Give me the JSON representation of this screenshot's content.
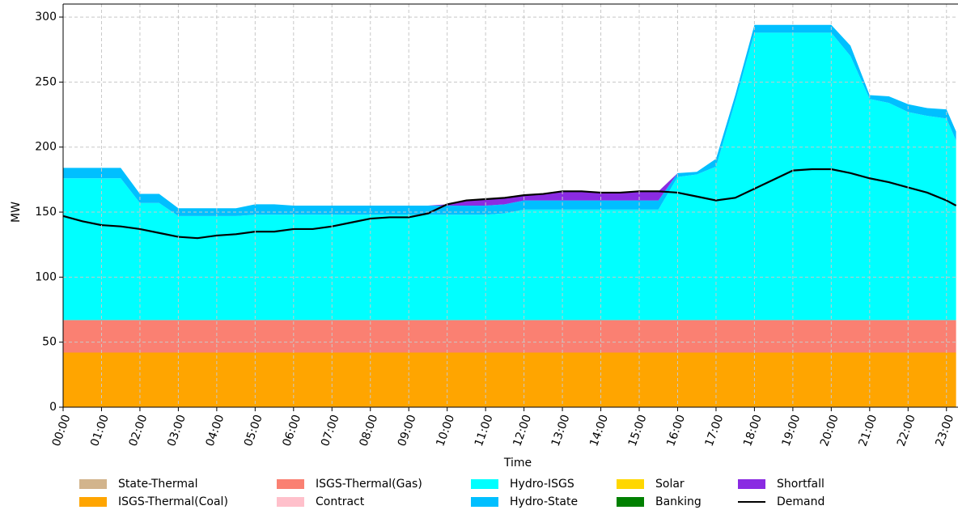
{
  "chart_data": {
    "type": "stacked_area",
    "xlabel": "Time",
    "ylabel": "MW",
    "x": [
      0,
      0.5,
      1,
      1.5,
      2,
      2.5,
      3,
      3.5,
      4,
      4.5,
      5,
      5.5,
      6,
      6.5,
      7,
      7.5,
      8,
      8.5,
      9,
      9.5,
      10,
      10.5,
      11,
      11.5,
      12,
      12.5,
      13,
      13.5,
      14,
      14.5,
      15,
      15.5,
      16,
      16.5,
      17,
      17.5,
      18,
      18.5,
      19,
      19.5,
      20,
      20.5,
      21,
      21.5,
      22,
      22.5,
      23,
      23.25
    ],
    "xlim": [
      0,
      23.3
    ],
    "xticks": [
      {
        "value": 0,
        "label": "00:00"
      },
      {
        "value": 1,
        "label": "01:00"
      },
      {
        "value": 2,
        "label": "02:00"
      },
      {
        "value": 3,
        "label": "03:00"
      },
      {
        "value": 4,
        "label": "04:00"
      },
      {
        "value": 5,
        "label": "05:00"
      },
      {
        "value": 6,
        "label": "06:00"
      },
      {
        "value": 7,
        "label": "07:00"
      },
      {
        "value": 8,
        "label": "08:00"
      },
      {
        "value": 9,
        "label": "09:00"
      },
      {
        "value": 10,
        "label": "10:00"
      },
      {
        "value": 11,
        "label": "11:00"
      },
      {
        "value": 12,
        "label": "12:00"
      },
      {
        "value": 13,
        "label": "13:00"
      },
      {
        "value": 14,
        "label": "14:00"
      },
      {
        "value": 15,
        "label": "15:00"
      },
      {
        "value": 16,
        "label": "16:00"
      },
      {
        "value": 17,
        "label": "17:00"
      },
      {
        "value": 18,
        "label": "18:00"
      },
      {
        "value": 19,
        "label": "19:00"
      },
      {
        "value": 20,
        "label": "20:00"
      },
      {
        "value": 21,
        "label": "21:00"
      },
      {
        "value": 22,
        "label": "22:00"
      },
      {
        "value": 23,
        "label": "23:00"
      }
    ],
    "ylim": [
      0,
      310
    ],
    "yticks": [
      0,
      50,
      100,
      150,
      200,
      250,
      300
    ],
    "grid": true,
    "series": [
      {
        "name": "State-Thermal",
        "color": "#d2b48c",
        "values": [
          0,
          0,
          0,
          0,
          0,
          0,
          0,
          0,
          0,
          0,
          0,
          0,
          0,
          0,
          0,
          0,
          0,
          0,
          0,
          0,
          0,
          0,
          0,
          0,
          0,
          0,
          0,
          0,
          0,
          0,
          0,
          0,
          0,
          0,
          0,
          0,
          0,
          0,
          0,
          0,
          0,
          0,
          0,
          0,
          0,
          0,
          0,
          0
        ]
      },
      {
        "name": "ISGS-Thermal(Coal)",
        "color": "#ffa500",
        "values": [
          42,
          42,
          42,
          42,
          42,
          42,
          42,
          42,
          42,
          42,
          42,
          42,
          42,
          42,
          42,
          42,
          42,
          42,
          42,
          42,
          42,
          42,
          42,
          42,
          42,
          42,
          42,
          42,
          42,
          42,
          42,
          42,
          42,
          42,
          42,
          42,
          42,
          42,
          42,
          42,
          42,
          42,
          42,
          42,
          42,
          42,
          42,
          42
        ]
      },
      {
        "name": "ISGS-Thermal(Gas)",
        "color": "#fa8072",
        "values": [
          25,
          25,
          25,
          25,
          25,
          25,
          25,
          25,
          25,
          25,
          25,
          25,
          25,
          25,
          25,
          25,
          25,
          25,
          25,
          25,
          25,
          25,
          25,
          25,
          25,
          25,
          25,
          25,
          25,
          25,
          25,
          25,
          25,
          25,
          25,
          25,
          25,
          25,
          25,
          25,
          25,
          25,
          25,
          25,
          25,
          25,
          25,
          25
        ]
      },
      {
        "name": "Contract",
        "color": "#ffc0cb",
        "values": [
          0,
          0,
          0,
          0,
          0,
          0,
          0,
          0,
          0,
          0,
          0,
          0,
          0,
          0,
          0,
          0,
          0,
          0,
          0,
          0,
          0,
          0,
          0,
          0,
          0,
          0,
          0,
          0,
          0,
          0,
          0,
          0,
          0,
          0,
          0,
          0,
          0,
          0,
          0,
          0,
          0,
          0,
          0,
          0,
          0,
          0,
          0,
          0
        ]
      },
      {
        "name": "Hydro-ISGS",
        "color": "#00ffff",
        "values": [
          109,
          109,
          109,
          109,
          90,
          90,
          80,
          80,
          80,
          80,
          81,
          81,
          81,
          81,
          81,
          81,
          81,
          81,
          81,
          81,
          81,
          81,
          81,
          82,
          85,
          85,
          85,
          85,
          85,
          85,
          85,
          85,
          110,
          112,
          118,
          168,
          221,
          221,
          221,
          221,
          221,
          203,
          170,
          167,
          160,
          157,
          155,
          138
        ]
      },
      {
        "name": "Hydro-State",
        "color": "#00bfff",
        "values": [
          8,
          8,
          8,
          8,
          7,
          7,
          6,
          6,
          6,
          6,
          8,
          8,
          7,
          7,
          7,
          7,
          7,
          7,
          7,
          7,
          7,
          7,
          7,
          7,
          7,
          7,
          7,
          7,
          7,
          7,
          7,
          7,
          3,
          2,
          6,
          5,
          6,
          6,
          6,
          6,
          6,
          8,
          3,
          5,
          6,
          6,
          7,
          7
        ]
      },
      {
        "name": "Solar",
        "color": "#ffd700",
        "values": [
          0,
          0,
          0,
          0,
          0,
          0,
          0,
          0,
          0,
          0,
          0,
          0,
          0,
          0,
          0,
          0,
          0,
          0,
          0,
          0,
          0,
          0,
          0,
          0,
          0,
          0,
          0,
          0,
          0,
          0,
          0,
          0,
          0,
          0,
          0,
          0,
          0,
          0,
          0,
          0,
          0,
          0,
          0,
          0,
          0,
          0,
          0,
          0
        ]
      },
      {
        "name": "Banking",
        "color": "#008000",
        "values": [
          0,
          0,
          0,
          0,
          0,
          0,
          0,
          0,
          0,
          0,
          0,
          0,
          0,
          0,
          0,
          0,
          0,
          0,
          0,
          0,
          0,
          0,
          0,
          0,
          0,
          0,
          0,
          0,
          0,
          0,
          0,
          0,
          0,
          0,
          0,
          0,
          0,
          0,
          0,
          0,
          0,
          0,
          0,
          0,
          0,
          0,
          0,
          0
        ]
      },
      {
        "name": "Shortfall",
        "color": "#8a2be2",
        "values": [
          0,
          0,
          0,
          0,
          0,
          0,
          0,
          0,
          0,
          0,
          0,
          0,
          0,
          0,
          0,
          0,
          0,
          0,
          0,
          0,
          1,
          4,
          5,
          5,
          4,
          5,
          7,
          7,
          6,
          6,
          7,
          7,
          0,
          0,
          0,
          0,
          0,
          0,
          0,
          0,
          0,
          0,
          0,
          0,
          0,
          0,
          0,
          0
        ]
      }
    ],
    "line": {
      "name": "Demand",
      "color": "#000000",
      "values": [
        147,
        143,
        140,
        139,
        137,
        134,
        131,
        130,
        132,
        133,
        135,
        135,
        137,
        137,
        139,
        142,
        145,
        146,
        146,
        149,
        156,
        159,
        160,
        161,
        163,
        164,
        166,
        166,
        165,
        165,
        166,
        166,
        165,
        162,
        159,
        161,
        168,
        175,
        182,
        183,
        183,
        180,
        176,
        173,
        169,
        165,
        159,
        155
      ]
    }
  }
}
